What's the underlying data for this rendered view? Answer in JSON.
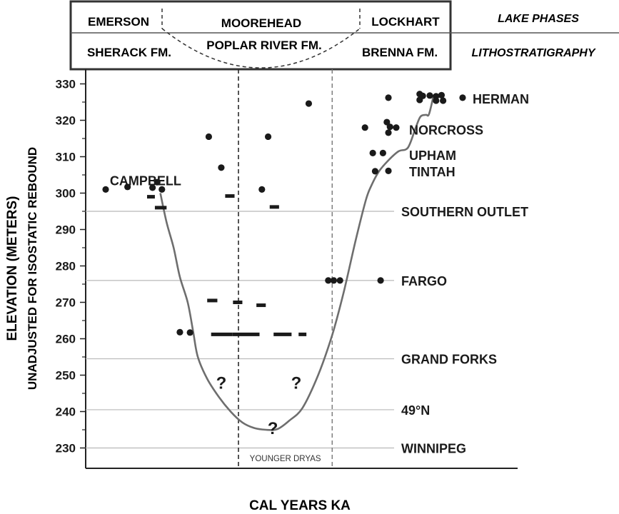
{
  "header": {
    "lake_phases": [
      "EMERSON",
      "MOOREHEAD",
      "LOCKHART"
    ],
    "lake_phases_label": "LAKE PHASES",
    "lithostratigraphy": [
      "SHERACK FM.",
      "POPLAR RIVER FM.",
      "BRENNA FM."
    ],
    "lithostratigraphy_label": "LITHOSTRATIGRAPHY"
  },
  "chart_data": {
    "type": "scatter",
    "xlabel": "CAL YEARS KA",
    "ylabel": "ELEVATION (METERS)",
    "ylabel2": "UNADJUSTED FOR ISOSTATIC REBOUND",
    "xlim": [
      9.75,
      15.25
    ],
    "ylim": [
      225,
      332
    ],
    "xticks": [
      10,
      11,
      12,
      13,
      14,
      15
    ],
    "yticks": [
      230,
      240,
      250,
      260,
      270,
      280,
      290,
      300,
      310,
      320,
      330
    ],
    "reference_lines": [
      {
        "name": "SOUTHERN OUTLET",
        "y": 295
      },
      {
        "name": "FARGO",
        "y": 276
      },
      {
        "name": "GRAND FORKS",
        "y": 254.5
      },
      {
        "name": "49°N",
        "y": 240.5
      },
      {
        "name": "WINNIPEG",
        "y": 230
      }
    ],
    "beach_labels": [
      {
        "name": "CAMPBELL",
        "x": 10.2,
        "y": 303.5
      },
      {
        "name": "HERMAN",
        "x": 14.9,
        "y": 326
      },
      {
        "name": "NORCROSS",
        "x": 14.2,
        "y": 317.5
      },
      {
        "name": "UPHAM",
        "x": 14.2,
        "y": 310.5
      },
      {
        "name": "TINTAH",
        "x": 14.2,
        "y": 306
      }
    ],
    "shaded_period": {
      "name": "YOUNGER DRYAS",
      "x": [
        11.7,
        12.9
      ]
    },
    "points": [
      [
        10.0,
        301
      ],
      [
        10.28,
        301.7
      ],
      [
        10.6,
        301.5
      ],
      [
        10.66,
        303
      ],
      [
        10.72,
        301
      ],
      [
        10.95,
        261.8
      ],
      [
        11.08,
        261.7
      ],
      [
        11.32,
        315.5
      ],
      [
        11.48,
        307
      ],
      [
        12.0,
        301
      ],
      [
        12.08,
        315.5
      ],
      [
        12.6,
        324.6
      ],
      [
        12.85,
        276
      ],
      [
        12.92,
        276
      ],
      [
        13.0,
        276
      ],
      [
        13.52,
        276
      ],
      [
        13.32,
        318
      ],
      [
        13.42,
        311
      ],
      [
        13.45,
        306
      ],
      [
        13.55,
        311
      ],
      [
        13.62,
        306.1
      ],
      [
        13.62,
        326.2
      ],
      [
        13.6,
        319.5
      ],
      [
        13.64,
        318.2
      ],
      [
        13.62,
        316.6
      ],
      [
        13.72,
        318
      ],
      [
        14.02,
        327.2
      ],
      [
        14.06,
        326.7
      ],
      [
        14.15,
        326.8
      ],
      [
        14.02,
        325.6
      ],
      [
        14.23,
        326.6
      ],
      [
        14.3,
        326.9
      ],
      [
        14.23,
        325.4
      ],
      [
        14.32,
        325.4
      ],
      [
        14.57,
        326.2
      ]
    ],
    "dates": [
      {
        "x1": 10.53,
        "x2": 10.63,
        "y": 299
      },
      {
        "x1": 10.63,
        "x2": 10.78,
        "y": 296
      },
      {
        "x1": 11.53,
        "x2": 11.65,
        "y": 299.2
      },
      {
        "x1": 12.1,
        "x2": 12.22,
        "y": 296.2
      },
      {
        "x1": 11.3,
        "x2": 11.43,
        "y": 270.5
      },
      {
        "x1": 11.63,
        "x2": 11.75,
        "y": 270
      },
      {
        "x1": 11.93,
        "x2": 12.05,
        "y": 269.2
      },
      {
        "x1": 11.35,
        "x2": 11.62,
        "y": 261.2
      },
      {
        "x1": 11.62,
        "x2": 11.97,
        "y": 261.2
      },
      {
        "x1": 12.15,
        "x2": 12.38,
        "y": 261.2
      },
      {
        "x1": 12.47,
        "x2": 12.57,
        "y": 261.2
      }
    ],
    "curve": [
      [
        10.7,
        300
      ],
      [
        10.78,
        292
      ],
      [
        10.87,
        285
      ],
      [
        10.95,
        277
      ],
      [
        11.05,
        270
      ],
      [
        11.12,
        262
      ],
      [
        11.18,
        255
      ],
      [
        11.3,
        249
      ],
      [
        11.45,
        244
      ],
      [
        11.6,
        240
      ],
      [
        11.75,
        237
      ],
      [
        11.9,
        235.5
      ],
      [
        12.05,
        235
      ],
      [
        12.2,
        235.2
      ],
      [
        12.35,
        237.5
      ],
      [
        12.52,
        241
      ],
      [
        12.72,
        250
      ],
      [
        12.9,
        261
      ],
      [
        13.05,
        273
      ],
      [
        13.2,
        287
      ],
      [
        13.33,
        298
      ],
      [
        13.4,
        302
      ],
      [
        13.5,
        306
      ],
      [
        13.62,
        309
      ],
      [
        13.75,
        311.5
      ],
      [
        13.87,
        312.5
      ],
      [
        13.97,
        318
      ],
      [
        14.03,
        321
      ],
      [
        14.1,
        321.5
      ],
      [
        14.14,
        321.7
      ],
      [
        14.2,
        327
      ]
    ],
    "question_marks": [
      {
        "label": "?",
        "x": 11.48,
        "y": 248
      },
      {
        "label": "?",
        "x": 12.44,
        "y": 248
      },
      {
        "label": "?",
        "x": 12.14,
        "y": 235.6
      }
    ]
  },
  "colors": {
    "ink": "#1a1a1a",
    "curve": "#6e6e6e",
    "refline": "#b8b8b8",
    "dashed": "#2a2a2a"
  }
}
